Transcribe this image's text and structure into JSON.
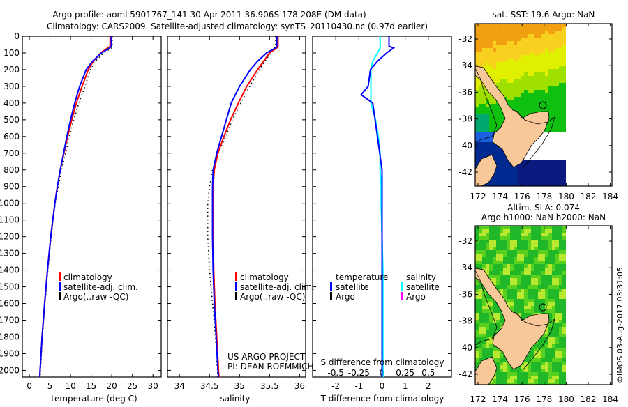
{
  "title_line1": "Argo profile: aoml 5901767_141 30-Apr-2011 36.906S 178.208E (DM data)",
  "title_line2": "Climatology: CARS2009. Satellite-adjusted climatology: synTS_20110430.nc (0.97d earlier)",
  "colors": {
    "climatology": "#ff0000",
    "satellite": "#0000ff",
    "argo": "#000000",
    "sal_satellite": "#00ffff",
    "sal_argo": "#ff00ff",
    "land": "#f8c898"
  },
  "project": {
    "line1": "US ARGO PROJECT",
    "line2": "PI: DEAN ROEMMICH"
  },
  "credit": "©IMOS 03-Aug-2017 03:31:05",
  "chart_data": [
    {
      "type": "line",
      "name": "temperature",
      "xlabel": "temperature (deg C)",
      "ylabel": "",
      "xlim": [
        -1.7,
        32
      ],
      "ylim": [
        0,
        2040
      ],
      "xticks": [
        "0",
        "5",
        "10",
        "15",
        "20",
        "25",
        "30"
      ],
      "xtick_values": [
        0,
        5,
        10,
        15,
        20,
        25,
        30
      ],
      "yticks": [
        "0",
        "100",
        "200",
        "300",
        "400",
        "500",
        "600",
        "700",
        "800",
        "900",
        "1000",
        "1100",
        "1200",
        "1300",
        "1400",
        "1500",
        "1600",
        "1700",
        "1800",
        "1900",
        "2000"
      ],
      "depth": [
        0,
        60,
        70,
        100,
        150,
        200,
        300,
        400,
        500,
        600,
        700,
        800,
        900,
        1000,
        1200,
        1400,
        1600,
        1800,
        2000,
        2050
      ],
      "series": [
        {
          "name": "climatology",
          "values": [
            19.6,
            19.6,
            19.0,
            17.3,
            15.5,
            14.3,
            12.8,
            11.4,
            10.3,
            9.3,
            8.4,
            7.5,
            6.8,
            6.2,
            5.2,
            4.4,
            3.7,
            3.1,
            2.6,
            2.5
          ]
        },
        {
          "name": "satellite-adj. clim.",
          "values": [
            19.9,
            19.9,
            19.5,
            17.5,
            15.3,
            13.8,
            12.2,
            11.0,
            10.0,
            9.1,
            8.3,
            7.5,
            6.8,
            6.2,
            5.2,
            4.4,
            3.7,
            3.1,
            2.6,
            2.5
          ]
        },
        {
          "name": "Argo(..raw -QC)",
          "values": [
            20.1,
            20.1,
            20.0,
            18.0,
            16.0,
            14.8,
            13.5,
            12.0,
            10.8,
            9.7,
            8.8,
            7.8,
            7.0,
            6.3,
            5.3,
            4.5,
            3.8,
            3.2,
            2.7,
            2.6
          ]
        }
      ],
      "legend": [
        "climatology",
        "satellite-adj. clim.",
        "Argo(..raw -QC)"
      ]
    },
    {
      "type": "line",
      "name": "salinity",
      "xlabel": "salinity",
      "xlim": [
        33.8,
        36.1
      ],
      "ylim": [
        0,
        2040
      ],
      "xticks": [
        "34",
        "34.5",
        "35",
        "35.5",
        "36"
      ],
      "xtick_values": [
        34,
        34.5,
        35,
        35.5,
        36
      ],
      "depth": [
        0,
        60,
        70,
        100,
        150,
        200,
        300,
        400,
        500,
        600,
        700,
        800,
        900,
        1000,
        1200,
        1400,
        1600,
        1800,
        2000,
        2050
      ],
      "series": [
        {
          "name": "climatology",
          "values": [
            35.64,
            35.64,
            35.62,
            35.5,
            35.4,
            35.3,
            35.12,
            34.98,
            34.85,
            34.74,
            34.64,
            34.58,
            34.56,
            34.56,
            34.56,
            34.57,
            34.59,
            34.62,
            34.65,
            34.66
          ]
        },
        {
          "name": "satellite-adj. clim.",
          "values": [
            35.62,
            35.62,
            35.6,
            35.45,
            35.3,
            35.18,
            35.0,
            34.86,
            34.78,
            34.7,
            34.62,
            34.56,
            34.55,
            34.55,
            34.55,
            34.56,
            34.58,
            34.61,
            34.64,
            34.65
          ]
        },
        {
          "name": "Argo(..raw -QC)",
          "values": [
            35.6,
            35.6,
            35.58,
            35.52,
            35.42,
            35.33,
            35.17,
            35.02,
            34.88,
            34.77,
            34.64,
            34.55,
            34.5,
            34.47,
            34.47,
            34.5,
            34.55,
            34.6,
            34.63,
            34.64
          ]
        }
      ],
      "legend": [
        "climatology",
        "satellite-adj. clim.",
        "Argo(..raw -QC)"
      ]
    },
    {
      "type": "line",
      "name": "difference",
      "xlabel": "T difference from climatology",
      "top_label": "S difference from climatology",
      "xlim": [
        -3,
        3
      ],
      "ylim": [
        0,
        2040
      ],
      "xticks": [
        "-2",
        "-1",
        "0",
        "1",
        "2"
      ],
      "xtick_values": [
        -2,
        -1,
        0,
        1,
        2
      ],
      "sticks": [
        "-0.5",
        "-0.25",
        "0",
        "0.25",
        "0.5"
      ],
      "stick_values": [
        -0.5,
        -0.25,
        0,
        0.25,
        0.5
      ],
      "depth": [
        0,
        60,
        70,
        100,
        150,
        200,
        300,
        350,
        400,
        500,
        600,
        700,
        800,
        900,
        1000,
        1200,
        1400,
        1600,
        1800,
        2000,
        2050
      ],
      "series": [
        {
          "name": "temperature satellite",
          "values": [
            0.3,
            0.3,
            0.5,
            0.2,
            -0.2,
            -0.5,
            -0.6,
            -0.9,
            -0.4,
            -0.3,
            -0.2,
            -0.1,
            0,
            0,
            0,
            0,
            0,
            0,
            0,
            0,
            0
          ]
        },
        {
          "name": "salinity satellite",
          "values": [
            -0.02,
            -0.02,
            -0.02,
            -0.05,
            -0.1,
            -0.12,
            -0.12,
            -0.12,
            -0.12,
            -0.07,
            -0.04,
            -0.02,
            -0.02,
            -0.01,
            -0.01,
            0,
            0.01,
            0.01,
            0.01,
            0.01,
            0.01
          ]
        }
      ],
      "legend": {
        "temperature": "temperature",
        "salinity": "salinity",
        "satellite": "satellite",
        "argo": "Argo"
      }
    },
    {
      "type": "heatmap",
      "name": "sst-map",
      "title": "sat. SST: 19.6 Argo: NaN",
      "xticks": [
        "172",
        "174",
        "176",
        "178",
        "180",
        "182",
        "184"
      ],
      "yticks": [
        "-32",
        "-34",
        "-36",
        "-38",
        "-40",
        "-42"
      ],
      "argo_position": {
        "lat": -36.906,
        "lon": 178.208
      }
    },
    {
      "type": "heatmap",
      "name": "sla-map",
      "title_line1": "Altim. SLA: 0.074",
      "title_line2": "Argo h1000: NaN h2000: NaN",
      "xticks": [
        "172",
        "174",
        "176",
        "178",
        "180",
        "182",
        "184"
      ],
      "yticks": [
        "-32",
        "-34",
        "-36",
        "-38",
        "-40",
        "-42"
      ],
      "argo_position": {
        "lat": -36.906,
        "lon": 178.208
      }
    }
  ]
}
